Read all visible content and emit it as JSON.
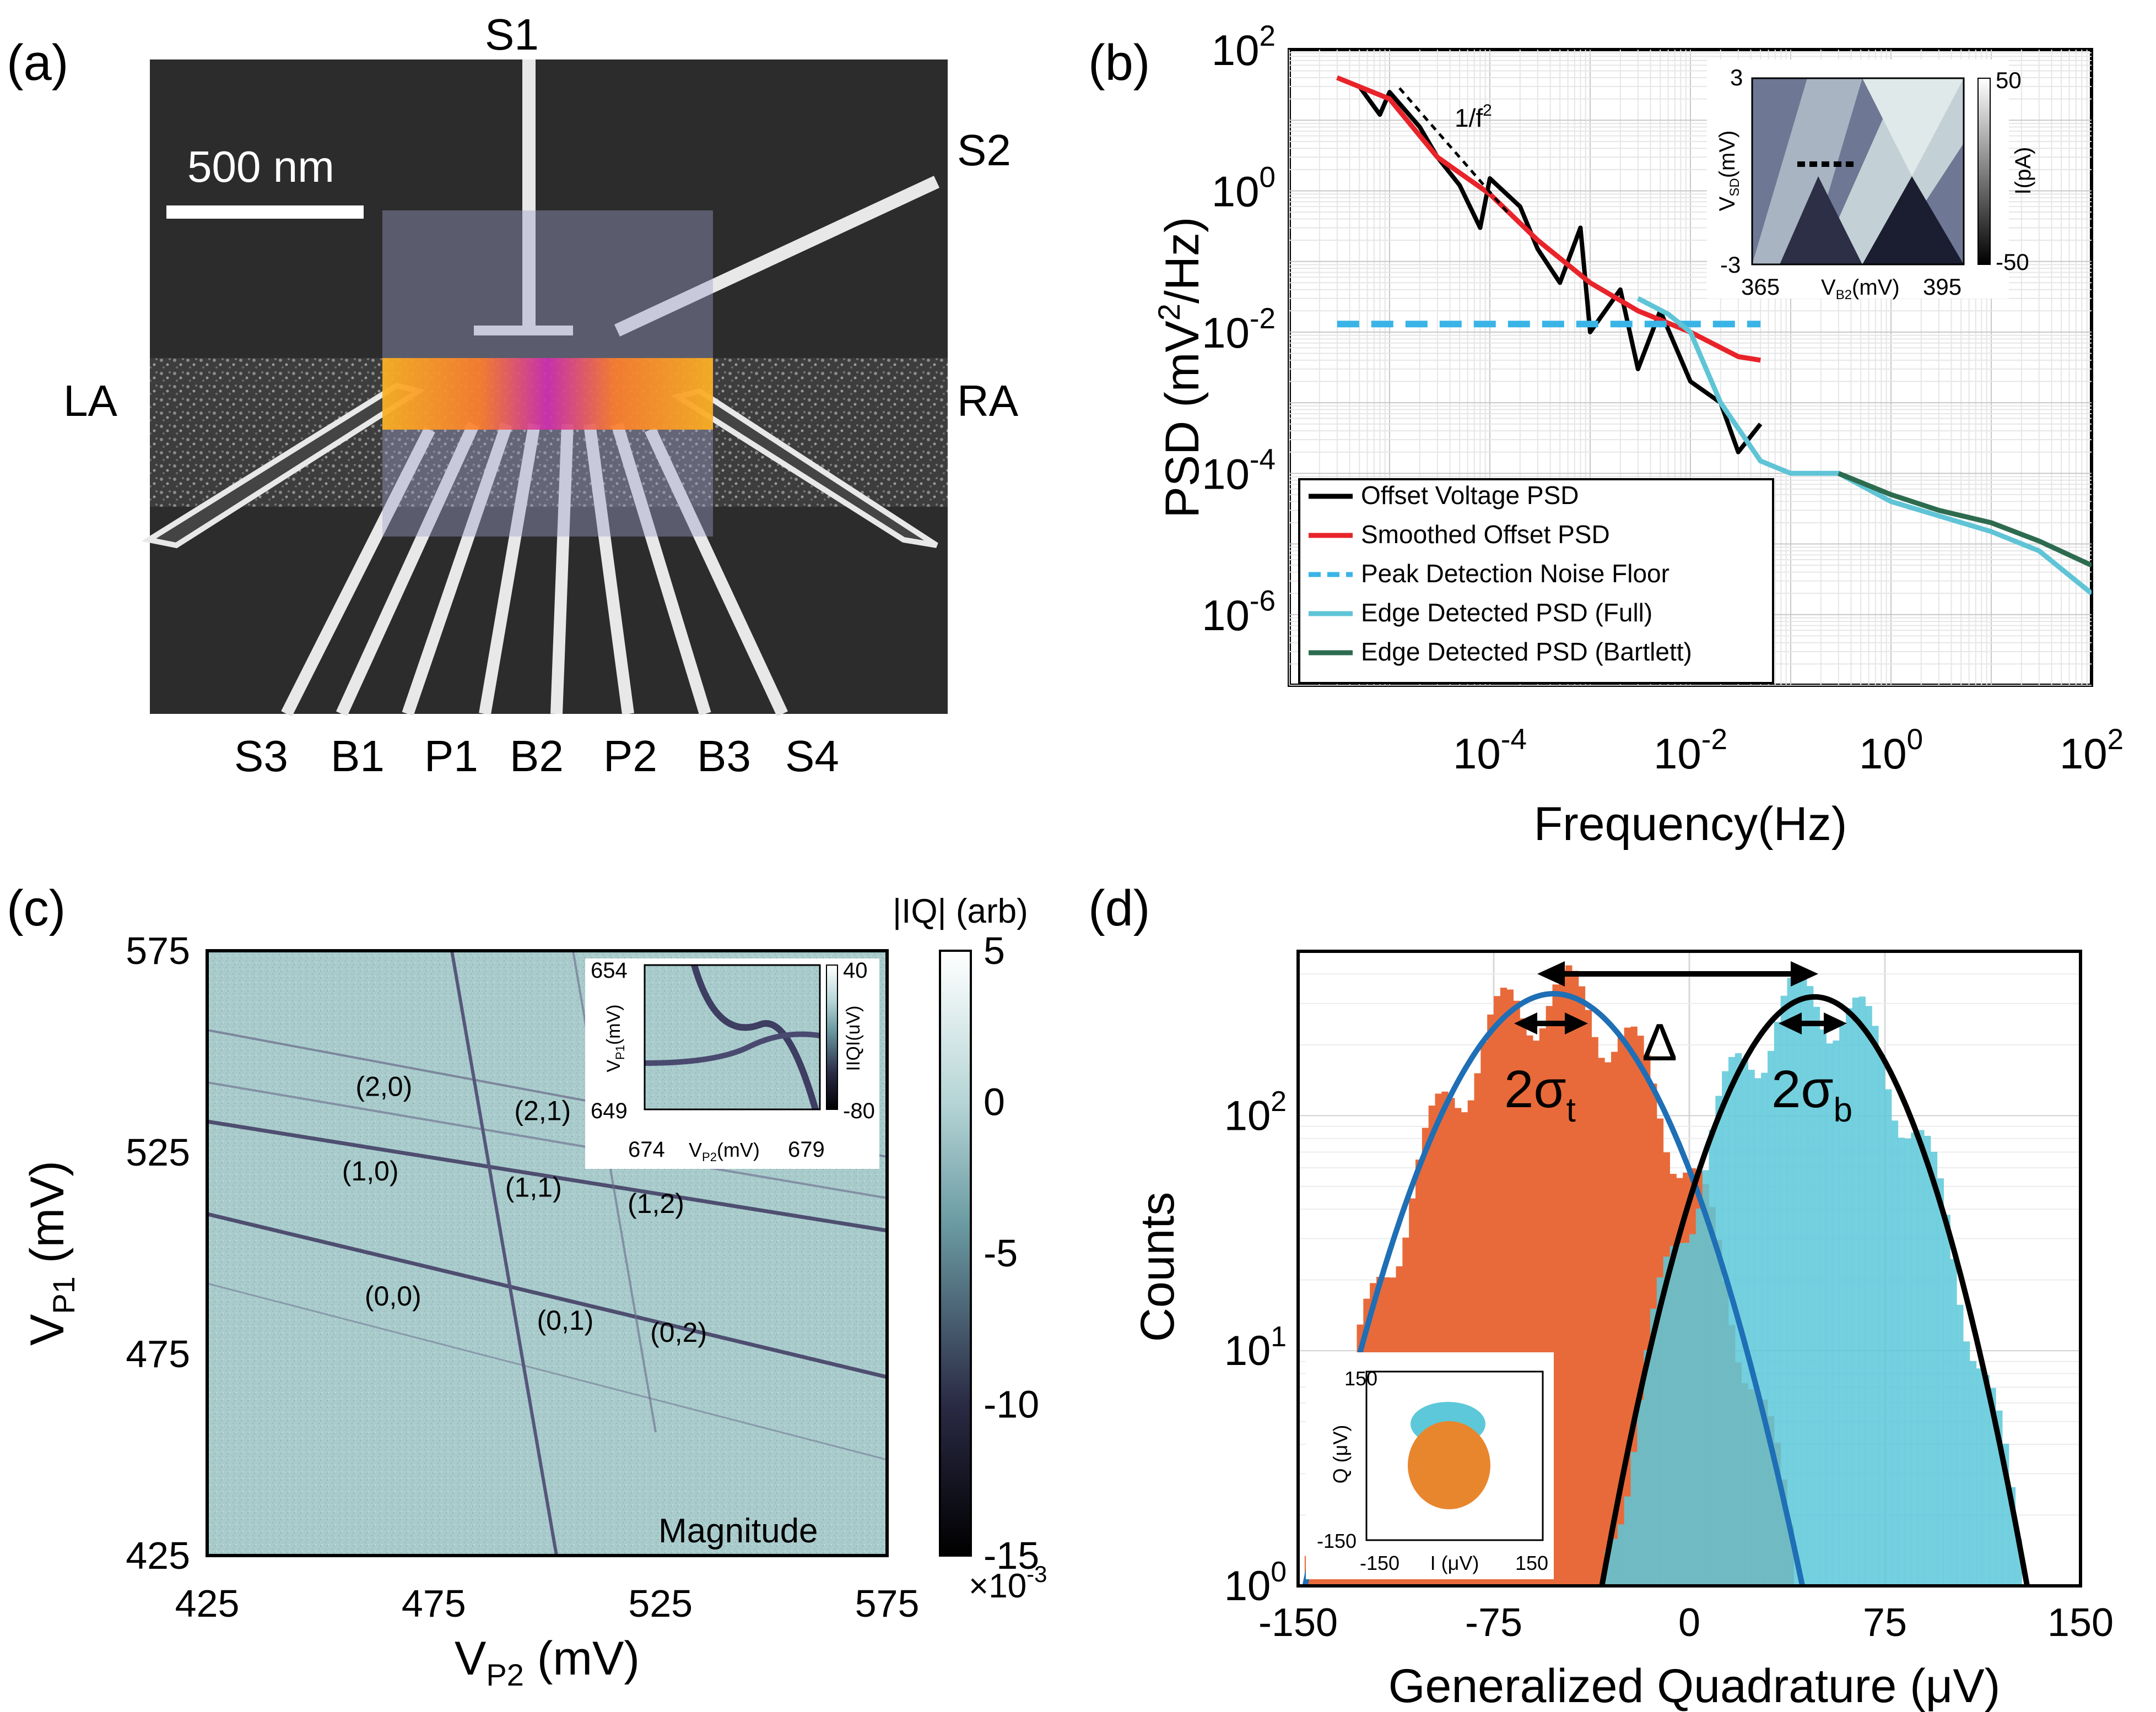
{
  "panels": {
    "a": {
      "label": "(a)",
      "scalebar": "500 nm",
      "gates": {
        "s1": "S1",
        "s2": "S2",
        "la": "LA",
        "ra": "RA",
        "bottom": [
          "S3",
          "B1",
          "P1",
          "B2",
          "P2",
          "B3",
          "S4"
        ]
      }
    },
    "b": {
      "label": "(b)",
      "ratio_label": "1/f",
      "ratio_exp": "2"
    },
    "c": {
      "label": "(c)",
      "colorbar_title": "|IQ| (arb)",
      "corner_label": "Magnitude"
    },
    "d": {
      "label": "(d)",
      "delta": "Δ",
      "two": "2σ",
      "sub_t": "t",
      "sub_b": "b"
    }
  },
  "chart_data": [
    {
      "id": "b",
      "type": "line",
      "xscale": "log",
      "yscale": "log",
      "xlim": [
        1e-06,
        100
      ],
      "ylim": [
        1e-07,
        100
      ],
      "xlabel": "Frequency(Hz)",
      "ylabel_main": "PSD (mV",
      "ylabel_exp": "2",
      "ylabel_tail": "/Hz)",
      "xtick_base": "10",
      "xticks": [
        {
          "v": 0.0001,
          "exp": "-4"
        },
        {
          "v": 0.01,
          "exp": "-2"
        },
        {
          "v": 1,
          "exp": "0"
        },
        {
          "v": 100,
          "exp": "2"
        }
      ],
      "yticks": [
        {
          "v": 1e-06,
          "exp": "-6"
        },
        {
          "v": 0.0001,
          "exp": "-4"
        },
        {
          "v": 0.01,
          "exp": "-2"
        },
        {
          "v": 1,
          "exp": "0"
        },
        {
          "v": 100,
          "exp": "2"
        }
      ],
      "series": [
        {
          "name": "Offset Voltage PSD",
          "color": "#000000",
          "x": [
            3e-06,
            5e-06,
            8e-06,
            1e-05,
            2e-05,
            3e-05,
            5e-05,
            8e-05,
            0.0001,
            0.0002,
            0.0003,
            0.0005,
            0.0008,
            0.001,
            0.002,
            0.003,
            0.005,
            0.01,
            0.02,
            0.03,
            0.05
          ],
          "y": [
            40,
            30,
            12,
            25,
            8,
            3,
            1.2,
            0.3,
            1.5,
            0.6,
            0.15,
            0.05,
            0.3,
            0.01,
            0.04,
            0.003,
            0.02,
            0.002,
            0.001,
            0.0002,
            0.0005
          ]
        },
        {
          "name": "Smoothed Offset PSD",
          "color": "#e8242a",
          "x": [
            3e-06,
            1e-05,
            3e-05,
            0.0001,
            0.0003,
            0.001,
            0.003,
            0.01,
            0.03,
            0.05
          ],
          "y": [
            40,
            20,
            3,
            0.9,
            0.2,
            0.05,
            0.02,
            0.01,
            0.0045,
            0.004
          ]
        },
        {
          "name": "Peak Detection Noise Floor",
          "color": "#3ab4e6",
          "x": [
            3e-06,
            0.05
          ],
          "y": [
            0.013,
            0.013
          ]
        },
        {
          "name": "Edge Detected PSD (Full)",
          "color": "#5fc4d6",
          "x": [
            0.003,
            0.006,
            0.01,
            0.02,
            0.05,
            0.1,
            0.3,
            1,
            3,
            10,
            30,
            100
          ],
          "y": [
            0.03,
            0.018,
            0.01,
            0.001,
            0.00015,
            0.0001,
            0.0001,
            4e-05,
            2.5e-05,
            1.5e-05,
            8e-06,
            2e-06
          ]
        },
        {
          "name": "Edge Detected PSD (Bartlett)",
          "color": "#2d6b4f",
          "x": [
            0.3,
            1,
            3,
            10,
            30,
            100
          ],
          "y": [
            0.0001,
            5e-05,
            3e-05,
            2e-05,
            1.1e-05,
            5e-06
          ]
        }
      ],
      "inset": {
        "ylabel": "V",
        "ylabel_sub": "SD",
        "ylabel_tail": "(mV)",
        "xlabel": "V",
        "xlabel_sub": "B2",
        "xlabel_tail": "(mV)",
        "xlim": [
          365,
          395
        ],
        "ylim": [
          -3,
          3
        ],
        "cbar_label": "I(pA)",
        "cbar_ticks": [
          50,
          -50
        ]
      }
    },
    {
      "id": "c",
      "type": "heatmap",
      "xlabel": "V",
      "xlabel_sub": "P2",
      "xlabel_tail": " (mV)",
      "ylabel": "V",
      "ylabel_sub": "P1",
      "ylabel_tail": " (mV)",
      "xlim": [
        425,
        575
      ],
      "ylim": [
        425,
        575
      ],
      "xticks": [
        425,
        475,
        525,
        575
      ],
      "yticks": [
        575,
        525,
        475,
        425
      ],
      "colorbar_ticks": [
        5,
        0,
        -5,
        -10,
        -15
      ],
      "colorbar_multiplier": "×10",
      "colorbar_exp": "-3",
      "charge_states": [
        {
          "label": "(2,0)",
          "x": 464,
          "y": 539
        },
        {
          "label": "(2,1)",
          "x": 499,
          "y": 533
        },
        {
          "label": "(1,0)",
          "x": 461,
          "y": 518
        },
        {
          "label": "(1,1)",
          "x": 497,
          "y": 514
        },
        {
          "label": "(1,2)",
          "x": 524,
          "y": 510
        },
        {
          "label": "(0,0)",
          "x": 466,
          "y": 487
        },
        {
          "label": "(0,1)",
          "x": 504,
          "y": 481
        },
        {
          "label": "(0,2)",
          "x": 529,
          "y": 478
        }
      ],
      "inset": {
        "xlim": [
          674,
          679
        ],
        "ylim": [
          649,
          654
        ],
        "xlabel": "V",
        "xlabel_sub": "P2",
        "xlabel_tail": "(mV)",
        "ylabel": "V",
        "ylabel_sub": "P1",
        "ylabel_tail": "(mV)",
        "cbar_label": "IIQI(uV)",
        "cbar_ticks": [
          40,
          -80
        ]
      }
    },
    {
      "id": "d",
      "type": "bar",
      "xlabel": "Generalized Quadrature (μV)",
      "ylabel": "Counts",
      "xlim": [
        -150,
        150
      ],
      "ylim": [
        1,
        500
      ],
      "yscale": "log",
      "xticks": [
        -150,
        -75,
        0,
        75,
        150
      ],
      "ytick_base": "10",
      "yticks": [
        {
          "v": 1,
          "exp": "0"
        },
        {
          "v": 10,
          "exp": "1"
        },
        {
          "v": 100,
          "exp": "2"
        }
      ],
      "series": [
        {
          "name": "t",
          "color": "#e86a3a",
          "mean": -52,
          "sigma": 28,
          "peak": 330
        },
        {
          "name": "b",
          "color": "#5cc8d9",
          "mean": 48,
          "sigma": 24,
          "peak": 320
        }
      ],
      "inset": {
        "xlabel": "I (μV)",
        "ylabel": "Q (μV)",
        "xticks": [
          -150,
          150
        ],
        "yticks": [
          150,
          -150
        ]
      }
    }
  ]
}
